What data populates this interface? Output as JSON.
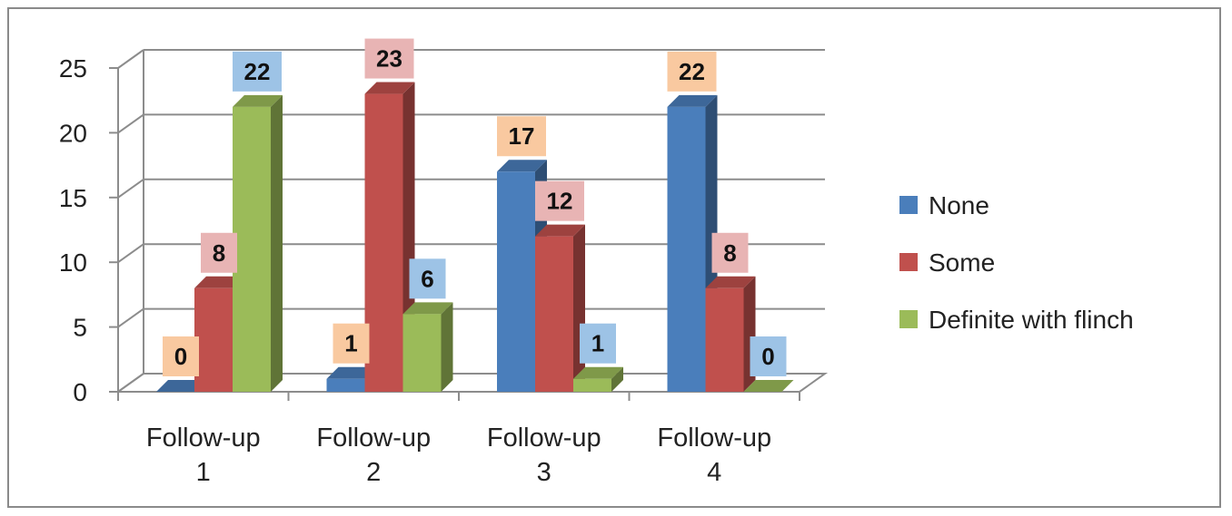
{
  "chart_data": {
    "type": "bar",
    "style": "3d-clustered-column",
    "categories": [
      "Follow-up 1",
      "Follow-up 2",
      "Follow-up 3",
      "Follow-up 4"
    ],
    "category_lines": [
      [
        "Follow-up",
        "1"
      ],
      [
        "Follow-up",
        "2"
      ],
      [
        "Follow-up",
        "3"
      ],
      [
        "Follow-up",
        "4"
      ]
    ],
    "series": [
      {
        "name": "None",
        "values": [
          0,
          1,
          17,
          22
        ],
        "color": "#4a7ebb",
        "label_bg": "#f9c9a0"
      },
      {
        "name": "Some",
        "values": [
          8,
          23,
          12,
          8
        ],
        "color": "#c0504d",
        "label_bg": "#e8b4b4"
      },
      {
        "name": "Definite with flinch",
        "values": [
          22,
          6,
          1,
          0
        ],
        "color": "#9bbb59",
        "label_bg": "#9dc3e6"
      }
    ],
    "ylim": [
      0,
      25
    ],
    "yticks": [
      0,
      5,
      10,
      15,
      20,
      25
    ],
    "grid": true,
    "legend_position": "right",
    "data_labels": true,
    "title": "",
    "xlabel": "",
    "ylabel": ""
  }
}
